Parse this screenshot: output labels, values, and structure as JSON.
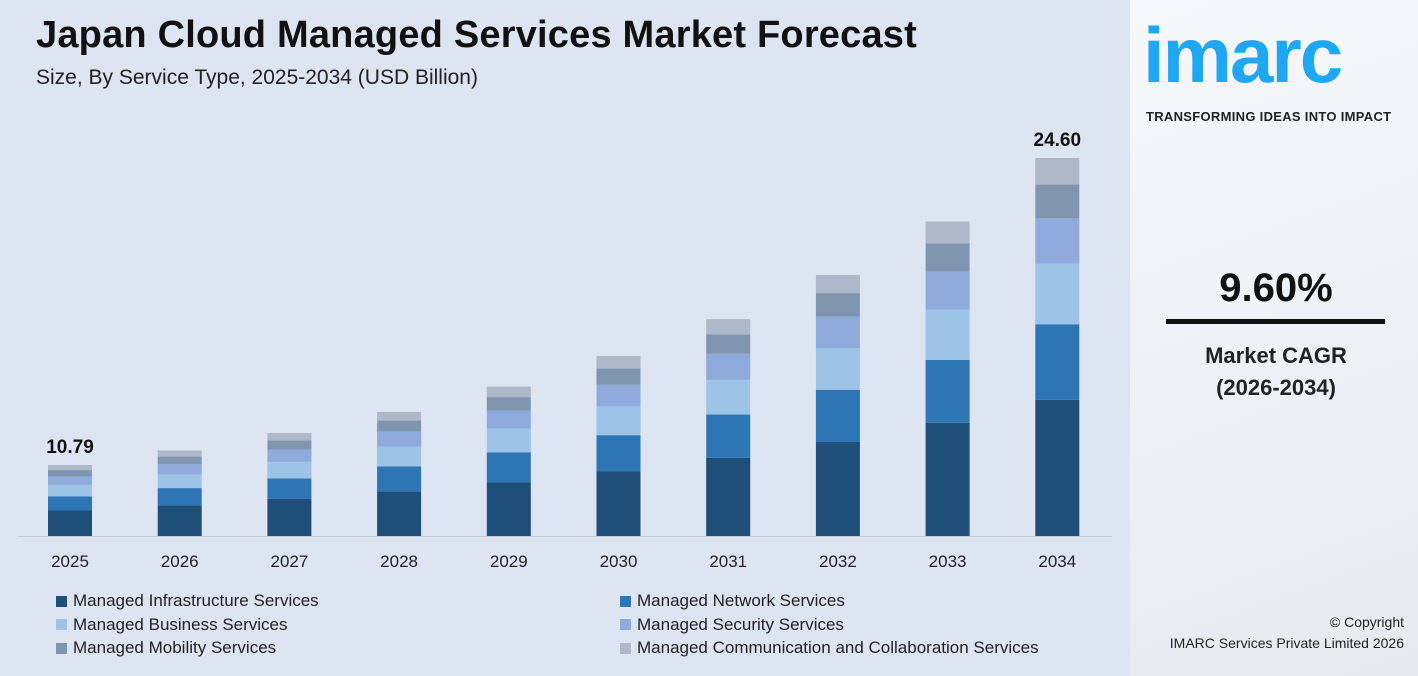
{
  "header": {
    "title": "Japan Cloud Managed Services Market Forecast",
    "subtitle": "Size, By Service Type, 2025-2034 (USD Billion)"
  },
  "chart_data": {
    "type": "bar",
    "stacked": true,
    "title": "Japan Cloud Managed Services Market Forecast",
    "subtitle": "Size, By Service Type, 2025-2034 (USD Billion)",
    "categories": [
      "2025",
      "2026",
      "2027",
      "2028",
      "2029",
      "2030",
      "2031",
      "2032",
      "2033",
      "2034"
    ],
    "series": [
      {
        "name": "Managed Infrastructure Services",
        "color": "#1f4e79",
        "values": [
          3.88,
          4.26,
          4.67,
          5.12,
          5.61,
          6.15,
          6.74,
          7.38,
          8.09,
          8.86
        ]
      },
      {
        "name": "Managed Network Services",
        "color": "#2e75b6",
        "values": [
          2.16,
          2.37,
          2.59,
          2.84,
          3.11,
          3.41,
          3.74,
          4.1,
          4.49,
          4.92
        ]
      },
      {
        "name": "Managed Business Services",
        "color": "#9dc3e6",
        "values": [
          1.73,
          1.89,
          2.07,
          2.27,
          2.49,
          2.73,
          2.99,
          3.28,
          3.6,
          3.94
        ]
      },
      {
        "name": "Managed Security Services",
        "color": "#8faadc",
        "values": [
          1.29,
          1.42,
          1.56,
          1.71,
          1.87,
          2.05,
          2.25,
          2.46,
          2.7,
          2.95
        ]
      },
      {
        "name": "Managed Mobility Services",
        "color": "#8096b0",
        "values": [
          0.97,
          1.06,
          1.17,
          1.28,
          1.4,
          1.54,
          1.68,
          1.85,
          2.02,
          2.21
        ]
      },
      {
        "name": "Managed Communication and Collaboration Services",
        "color": "#adb8c8",
        "values": [
          0.76,
          0.83,
          0.9,
          0.99,
          1.09,
          1.19,
          1.31,
          1.43,
          1.57,
          1.72
        ]
      }
    ],
    "data_labels": [
      {
        "category": "2025",
        "text": "10.79"
      },
      {
        "category": "2034",
        "text": "24.60"
      }
    ],
    "grid": false,
    "legend_placement": "bottom"
  },
  "brand": {
    "logo": "imarc",
    "tagline": "TRANSFORMING IDEAS INTO IMPACT",
    "color": "#1ea7f2"
  },
  "cagr": {
    "value": "9.60%",
    "label": "Market CAGR",
    "period": "(2026-2034)"
  },
  "footer": {
    "copyright": "© Copyright",
    "company": "IMARC Services Private Limited 2026"
  }
}
